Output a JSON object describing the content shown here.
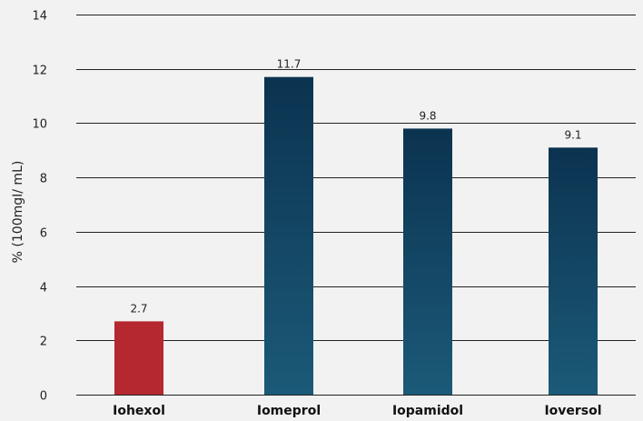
{
  "chart_data": {
    "type": "bar",
    "title": "",
    "xlabel": "",
    "ylabel": "% (100mgI/ mL)",
    "categories": [
      "Iohexol",
      "Iomeprol",
      "Iopamidol",
      "Ioversol"
    ],
    "values": [
      2.7,
      11.7,
      9.8,
      9.1
    ],
    "data_labels": [
      "2.7",
      "11.7",
      "9.8",
      "9.1"
    ],
    "ylim": [
      0,
      14
    ],
    "yticks": [
      0,
      2,
      4,
      6,
      8,
      10,
      12,
      14
    ],
    "grid": true,
    "legend": "none",
    "colors": {
      "highlight": "#b5282f",
      "bar_top": "#0b3350",
      "bar_bottom": "#1b5a78"
    },
    "highlight_index": 0
  }
}
